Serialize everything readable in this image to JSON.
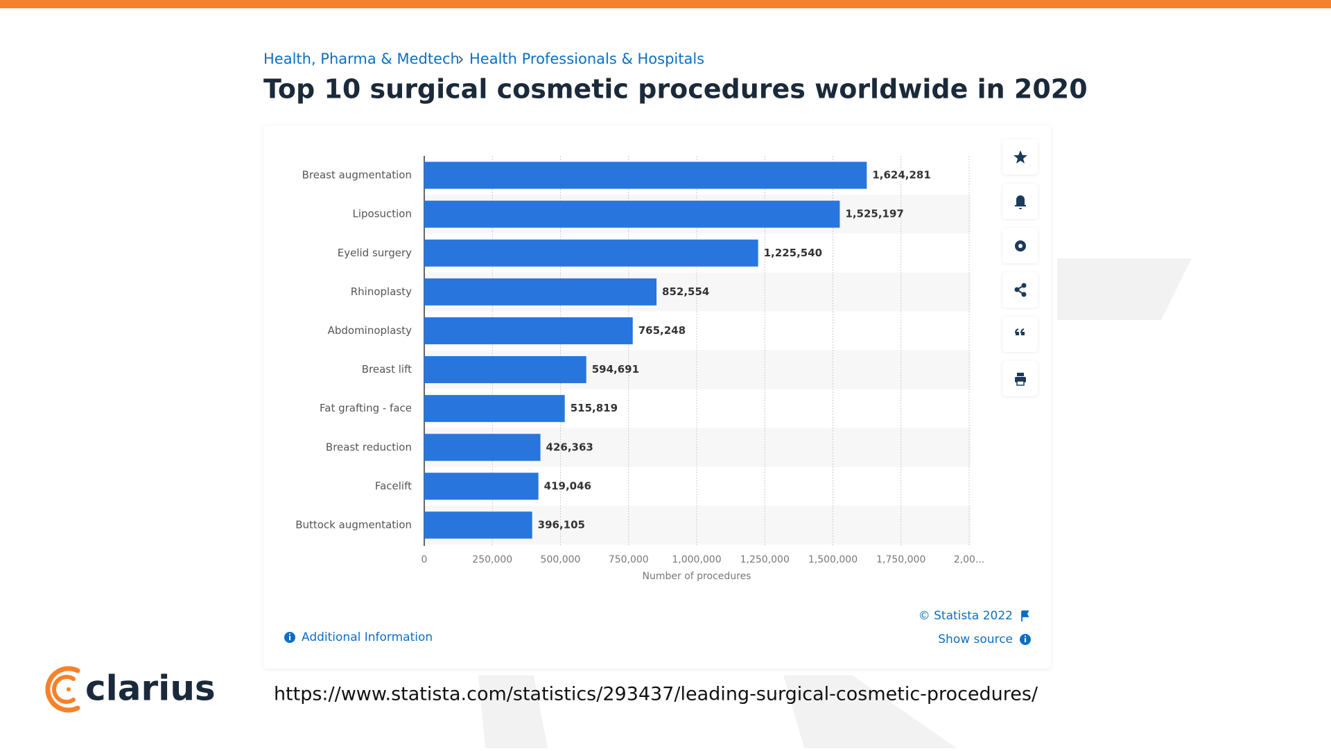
{
  "page": {
    "breadcrumb": [
      "Health, Pharma & Medtech",
      "Health Professionals & Hospitals"
    ],
    "credit": "© Statista 2022",
    "show_source": "Show source",
    "additional_info": "Additional Information",
    "url": "https://www.statista.com/statistics/293437/leading-surgical-cosmetic-procedures/",
    "logo": "clarius"
  },
  "chart_data": {
    "type": "bar",
    "orientation": "horizontal",
    "title": "Top 10 surgical cosmetic procedures worldwide in 2020",
    "categories": [
      "Breast augmentation",
      "Liposuction",
      "Eyelid surgery",
      "Rhinoplasty",
      "Abdominoplasty",
      "Breast lift",
      "Fat grafting - face",
      "Breast reduction",
      "Facelift",
      "Buttock augmentation"
    ],
    "values": [
      1624281,
      1525197,
      1225540,
      852554,
      765248,
      594691,
      515819,
      426363,
      419046,
      396105
    ],
    "value_labels": [
      "1,624,281",
      "1,525,197",
      "1,225,540",
      "852,554",
      "765,248",
      "594,691",
      "515,819",
      "426,363",
      "419,046",
      "396,105"
    ],
    "color": "#2876dd",
    "xlabel": "Number of procedures",
    "xlim": [
      0,
      2000000
    ],
    "xticks": [
      0,
      {
        "value": 250000,
        "label": "250,000"
      },
      {
        "value": 500000,
        "label": "500,000"
      },
      {
        "value": 750000,
        "label": "750,000"
      },
      {
        "value": 1000000,
        "label": "1,000,000"
      },
      {
        "value": 1250000,
        "label": "1,250,000"
      },
      {
        "value": 1500000,
        "label": "1,500,000"
      },
      {
        "value": 1750000,
        "label": "1,750,000"
      },
      {
        "value": 2000000,
        "label": "2,00..."
      }
    ],
    "grid": true
  }
}
